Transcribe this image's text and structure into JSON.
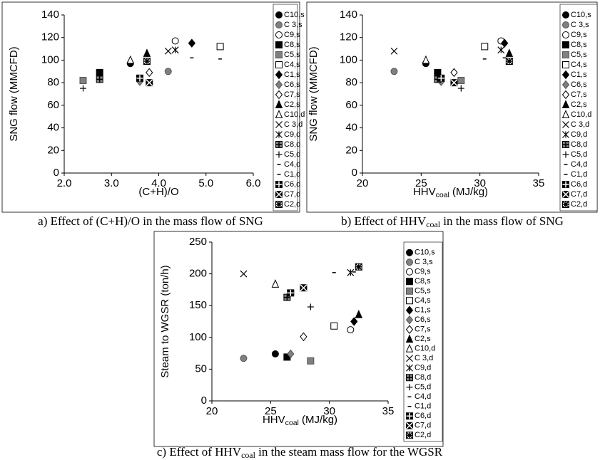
{
  "chart_data": [
    {
      "type": "scatter",
      "ylabel": "SNG flow (MMCFD)",
      "xlabel": [
        "(C+H)/O"
      ],
      "caption": [
        "a) Effect of (C+H)/O in the mass flow of SNG"
      ],
      "xlim": [
        2,
        6
      ],
      "ylim": [
        0,
        140
      ],
      "xticks": [
        {
          "value": 2,
          "label": "2.0"
        },
        {
          "value": 3,
          "label": "3.0"
        },
        {
          "value": 4,
          "label": "4.0"
        },
        {
          "value": 5,
          "label": "5.0"
        },
        {
          "value": 6,
          "label": "6.0"
        }
      ],
      "yticks": [
        0,
        20,
        40,
        60,
        80,
        100,
        120,
        140
      ],
      "series": [
        {
          "name": "C10,s",
          "color": "#000000",
          "marker": "circle",
          "x": [
            3.4
          ],
          "values": [
            97
          ]
        },
        {
          "name": "C 3,s",
          "color": "#808080",
          "marker": "circle",
          "x": [
            4.2
          ],
          "values": [
            90
          ]
        },
        {
          "name": "C9,s",
          "color": "#ffffff",
          "marker": "circle",
          "x": [
            4.35
          ],
          "values": [
            117
          ]
        },
        {
          "name": "C8,s",
          "color": "#000000",
          "marker": "square",
          "x": [
            2.75
          ],
          "values": [
            89
          ]
        },
        {
          "name": "C5,s",
          "color": "#808080",
          "marker": "square",
          "x": [
            2.4
          ],
          "values": [
            82
          ]
        },
        {
          "name": "C4,s",
          "color": "#ffffff",
          "marker": "square",
          "x": [
            5.3
          ],
          "values": [
            112
          ]
        },
        {
          "name": "C1,s",
          "color": "#000000",
          "marker": "diamond",
          "x": [
            4.7
          ],
          "values": [
            115
          ]
        },
        {
          "name": "C6,s",
          "color": "#808080",
          "marker": "diamond",
          "x": [
            3.6
          ],
          "values": [
            81
          ]
        },
        {
          "name": "C7,s",
          "color": "#ffffff",
          "marker": "diamond",
          "x": [
            3.8
          ],
          "values": [
            89
          ]
        },
        {
          "name": "C2,s",
          "color": "#000000",
          "marker": "triangle",
          "x": [
            3.75
          ],
          "values": [
            106
          ]
        },
        {
          "name": "C10,d",
          "color": "#ffffff",
          "marker": "triangle",
          "x": [
            3.4
          ],
          "values": [
            100
          ]
        },
        {
          "name": "C 3,d",
          "color": "#000000",
          "marker": "x",
          "x": [
            4.2
          ],
          "values": [
            108
          ]
        },
        {
          "name": "C9,d",
          "color": "#000000",
          "marker": "asterisk",
          "x": [
            4.35
          ],
          "values": [
            109
          ]
        },
        {
          "name": "C8,d",
          "color": "#808080",
          "marker": "boxplus",
          "x": [
            2.75
          ],
          "values": [
            83
          ]
        },
        {
          "name": "C5,d",
          "color": "#000000",
          "marker": "plus",
          "x": [
            2.4
          ],
          "values": [
            75
          ]
        },
        {
          "name": "C4,d",
          "color": "#000000",
          "marker": "dash",
          "x": [
            5.3
          ],
          "values": [
            101
          ]
        },
        {
          "name": "C1,d",
          "color": "#000000",
          "marker": "dash",
          "x": [
            4.7
          ],
          "values": [
            102
          ]
        },
        {
          "name": "C6,d",
          "color": "#000000",
          "marker": "boxplus",
          "x": [
            3.6
          ],
          "values": [
            84
          ]
        },
        {
          "name": "C7,d",
          "color": "#000000",
          "marker": "boxx",
          "x": [
            3.8
          ],
          "values": [
            80
          ]
        },
        {
          "name": "C2,d",
          "color": "#ffffff",
          "marker": "boxstar",
          "x": [
            3.75
          ],
          "values": [
            99
          ]
        }
      ]
    },
    {
      "type": "scatter",
      "ylabel": "SNG flow (MMCFD)",
      "xlabel": [
        "HHV",
        "coal",
        " (MJ/kg)"
      ],
      "caption": [
        "b) Effect of HHV",
        "coal",
        " in the mass flow of SNG"
      ],
      "xlim": [
        20,
        35
      ],
      "ylim": [
        0,
        140
      ],
      "xticks": [
        20,
        25,
        30,
        35
      ],
      "yticks": [
        0,
        20,
        40,
        60,
        80,
        100,
        120,
        140
      ],
      "series": [
        {
          "name": "C10,s",
          "color": "#000000",
          "marker": "circle",
          "x": [
            25.4
          ],
          "values": [
            97
          ]
        },
        {
          "name": "C 3,s",
          "color": "#808080",
          "marker": "circle",
          "x": [
            22.7
          ],
          "values": [
            90
          ]
        },
        {
          "name": "C9,s",
          "color": "#ffffff",
          "marker": "circle",
          "x": [
            31.8
          ],
          "values": [
            117
          ]
        },
        {
          "name": "C8,s",
          "color": "#000000",
          "marker": "square",
          "x": [
            26.4
          ],
          "values": [
            89
          ]
        },
        {
          "name": "C5,s",
          "color": "#808080",
          "marker": "square",
          "x": [
            28.4
          ],
          "values": [
            82
          ]
        },
        {
          "name": "C4,s",
          "color": "#ffffff",
          "marker": "square",
          "x": [
            30.4
          ],
          "values": [
            112
          ]
        },
        {
          "name": "C1,s",
          "color": "#000000",
          "marker": "diamond",
          "x": [
            32.1
          ],
          "values": [
            115
          ]
        },
        {
          "name": "C6,s",
          "color": "#808080",
          "marker": "diamond",
          "x": [
            26.7
          ],
          "values": [
            81
          ]
        },
        {
          "name": "C7,s",
          "color": "#ffffff",
          "marker": "diamond",
          "x": [
            27.8
          ],
          "values": [
            89
          ]
        },
        {
          "name": "C2,s",
          "color": "#000000",
          "marker": "triangle",
          "x": [
            32.5
          ],
          "values": [
            106
          ]
        },
        {
          "name": "C10,d",
          "color": "#ffffff",
          "marker": "triangle",
          "x": [
            25.4
          ],
          "values": [
            100
          ]
        },
        {
          "name": "C 3,d",
          "color": "#000000",
          "marker": "x",
          "x": [
            22.7
          ],
          "values": [
            108
          ]
        },
        {
          "name": "C9,d",
          "color": "#000000",
          "marker": "asterisk",
          "x": [
            31.8
          ],
          "values": [
            109
          ]
        },
        {
          "name": "C8,d",
          "color": "#808080",
          "marker": "boxplus",
          "x": [
            26.4
          ],
          "values": [
            83
          ]
        },
        {
          "name": "C5,d",
          "color": "#000000",
          "marker": "plus",
          "x": [
            28.4
          ],
          "values": [
            75
          ]
        },
        {
          "name": "C4,d",
          "color": "#000000",
          "marker": "dash",
          "x": [
            30.4
          ],
          "values": [
            101
          ]
        },
        {
          "name": "C1,d",
          "color": "#000000",
          "marker": "dash",
          "x": [
            32.1
          ],
          "values": [
            102
          ]
        },
        {
          "name": "C6,d",
          "color": "#000000",
          "marker": "boxplus",
          "x": [
            26.7
          ],
          "values": [
            84
          ]
        },
        {
          "name": "C7,d",
          "color": "#000000",
          "marker": "boxx",
          "x": [
            27.8
          ],
          "values": [
            80
          ]
        },
        {
          "name": "C2,d",
          "color": "#ffffff",
          "marker": "boxstar",
          "x": [
            32.5
          ],
          "values": [
            99
          ]
        }
      ]
    },
    {
      "type": "scatter",
      "ylabel": "Steam to WGSR (ton/h)",
      "xlabel": [
        "HHV",
        "coal",
        " (MJ/kg)"
      ],
      "caption": [
        "c) Effect of HHV",
        "coal",
        " in the steam mass flow for the WGSR"
      ],
      "xlim": [
        20,
        35
      ],
      "ylim": [
        0,
        250
      ],
      "xticks": [
        20,
        25,
        30,
        35
      ],
      "yticks": [
        0,
        50,
        100,
        150,
        200,
        250
      ],
      "series": [
        {
          "name": "C10,s",
          "color": "#000000",
          "marker": "circle",
          "x": [
            25.4
          ],
          "values": [
            74
          ]
        },
        {
          "name": "C 3,s",
          "color": "#808080",
          "marker": "circle",
          "x": [
            22.7
          ],
          "values": [
            67
          ]
        },
        {
          "name": "C9,s",
          "color": "#ffffff",
          "marker": "circle",
          "x": [
            31.8
          ],
          "values": [
            112
          ]
        },
        {
          "name": "C8,s",
          "color": "#000000",
          "marker": "square",
          "x": [
            26.4
          ],
          "values": [
            69
          ]
        },
        {
          "name": "C5,s",
          "color": "#808080",
          "marker": "square",
          "x": [
            28.4
          ],
          "values": [
            63
          ]
        },
        {
          "name": "C4,s",
          "color": "#ffffff",
          "marker": "square",
          "x": [
            30.4
          ],
          "values": [
            118
          ]
        },
        {
          "name": "C1,s",
          "color": "#000000",
          "marker": "diamond",
          "x": [
            32.1
          ],
          "values": [
            125
          ]
        },
        {
          "name": "C6,s",
          "color": "#808080",
          "marker": "diamond",
          "x": [
            26.7
          ],
          "values": [
            74
          ]
        },
        {
          "name": "C7,s",
          "color": "#ffffff",
          "marker": "diamond",
          "x": [
            27.8
          ],
          "values": [
            101
          ]
        },
        {
          "name": "C2,s",
          "color": "#000000",
          "marker": "triangle",
          "x": [
            32.5
          ],
          "values": [
            136
          ]
        },
        {
          "name": "C10,d",
          "color": "#ffffff",
          "marker": "triangle",
          "x": [
            25.4
          ],
          "values": [
            184
          ]
        },
        {
          "name": "C 3,d",
          "color": "#000000",
          "marker": "x",
          "x": [
            22.7
          ],
          "values": [
            200
          ]
        },
        {
          "name": "C9,d",
          "color": "#000000",
          "marker": "asterisk",
          "x": [
            31.8
          ],
          "values": [
            202
          ]
        },
        {
          "name": "C8,d",
          "color": "#808080",
          "marker": "boxplus",
          "x": [
            26.4
          ],
          "values": [
            163
          ]
        },
        {
          "name": "C5,d",
          "color": "#000000",
          "marker": "plus",
          "x": [
            28.4
          ],
          "values": [
            148
          ]
        },
        {
          "name": "C4,d",
          "color": "#000000",
          "marker": "dash",
          "x": [
            30.4
          ],
          "values": [
            202
          ]
        },
        {
          "name": "C1,d",
          "color": "#000000",
          "marker": "dash",
          "x": [
            32.1
          ],
          "values": [
            203
          ]
        },
        {
          "name": "C6,d",
          "color": "#000000",
          "marker": "boxplus",
          "x": [
            26.7
          ],
          "values": [
            170
          ]
        },
        {
          "name": "C7,d",
          "color": "#000000",
          "marker": "boxx",
          "x": [
            27.8
          ],
          "values": [
            178
          ]
        },
        {
          "name": "C2,d",
          "color": "#ffffff",
          "marker": "boxstar",
          "x": [
            32.5
          ],
          "values": [
            211
          ]
        }
      ]
    }
  ]
}
